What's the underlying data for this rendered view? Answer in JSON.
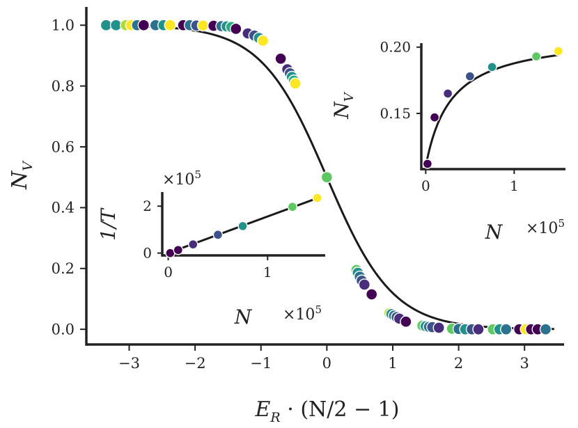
{
  "colors": {
    "axis": "#222222",
    "curve": "#1a1a1a",
    "marker_edge": "#ffffff",
    "palette": [
      "#440154",
      "#472d7b",
      "#3b528b",
      "#2c728e",
      "#21918c",
      "#28ae80",
      "#5ec962",
      "#addc30",
      "#fde725"
    ]
  },
  "chart_data": [
    {
      "id": "main",
      "type": "scatter",
      "xlabel": "E_R · (N/2 − 1)",
      "xlabel_main": "E",
      "xlabel_sub": "R",
      "xlabel_rest": " · (N/2 − 1)",
      "ylabel": "N_V",
      "ylabel_main": "N",
      "ylabel_sub": "V",
      "xlim": [
        -3.65,
        3.6
      ],
      "ylim": [
        -0.05,
        1.06
      ],
      "xticks": [
        -3,
        -2,
        -1,
        0,
        1,
        2,
        3
      ],
      "xtick_labels": [
        "−3",
        "−2",
        "−1",
        "0",
        "1",
        "2",
        "3"
      ],
      "yticks": [
        0.0,
        0.2,
        0.4,
        0.6,
        0.8,
        1.0
      ],
      "ytick_labels": [
        "0.0",
        "0.2",
        "0.4",
        "0.6",
        "0.8",
        "1.0"
      ],
      "grid": false,
      "curve": "logistic: N_V = 1 / (1 + exp(2x))",
      "points": [
        {
          "x": -3.35,
          "y": 1.0,
          "c": 4
        },
        {
          "x": -3.2,
          "y": 1.0,
          "c": 4
        },
        {
          "x": -3.05,
          "y": 1.0,
          "c": 7
        },
        {
          "x": -2.97,
          "y": 1.0,
          "c": 8
        },
        {
          "x": -2.88,
          "y": 1.0,
          "c": 3
        },
        {
          "x": -2.78,
          "y": 1.0,
          "c": 0
        },
        {
          "x": -2.6,
          "y": 1.0,
          "c": 3
        },
        {
          "x": -2.48,
          "y": 1.0,
          "c": 4
        },
        {
          "x": -2.38,
          "y": 1.0,
          "c": 8
        },
        {
          "x": -2.18,
          "y": 1.0,
          "c": 0
        },
        {
          "x": -2.08,
          "y": 1.0,
          "c": 3
        },
        {
          "x": -1.98,
          "y": 0.999,
          "c": 2
        },
        {
          "x": -1.88,
          "y": 0.999,
          "c": 8
        },
        {
          "x": -1.72,
          "y": 0.998,
          "c": 0
        },
        {
          "x": -1.6,
          "y": 0.997,
          "c": 3
        },
        {
          "x": -1.52,
          "y": 0.996,
          "c": 4
        },
        {
          "x": -1.45,
          "y": 0.994,
          "c": 5
        },
        {
          "x": -1.38,
          "y": 0.988,
          "c": 0
        },
        {
          "x": -1.2,
          "y": 0.973,
          "c": 1
        },
        {
          "x": -1.1,
          "y": 0.966,
          "c": 2
        },
        {
          "x": -1.03,
          "y": 0.958,
          "c": 4
        },
        {
          "x": -0.97,
          "y": 0.949,
          "c": 8
        },
        {
          "x": -0.7,
          "y": 0.89,
          "c": 0
        },
        {
          "x": -0.6,
          "y": 0.855,
          "c": 1
        },
        {
          "x": -0.56,
          "y": 0.842,
          "c": 2
        },
        {
          "x": -0.53,
          "y": 0.83,
          "c": 4
        },
        {
          "x": -0.5,
          "y": 0.818,
          "c": 5
        },
        {
          "x": -0.48,
          "y": 0.808,
          "c": 8
        },
        {
          "x": 0.0,
          "y": 0.5,
          "c": 6
        },
        {
          "x": 0.45,
          "y": 0.195,
          "c": 6
        },
        {
          "x": 0.47,
          "y": 0.186,
          "c": 4
        },
        {
          "x": 0.5,
          "y": 0.173,
          "c": 3
        },
        {
          "x": 0.53,
          "y": 0.16,
          "c": 2
        },
        {
          "x": 0.57,
          "y": 0.147,
          "c": 1
        },
        {
          "x": 0.68,
          "y": 0.115,
          "c": 0
        },
        {
          "x": 0.95,
          "y": 0.053,
          "c": 7
        },
        {
          "x": 0.98,
          "y": 0.05,
          "c": 4
        },
        {
          "x": 1.02,
          "y": 0.045,
          "c": 3
        },
        {
          "x": 1.06,
          "y": 0.04,
          "c": 2
        },
        {
          "x": 1.1,
          "y": 0.035,
          "c": 1
        },
        {
          "x": 1.2,
          "y": 0.025,
          "c": 0
        },
        {
          "x": 1.45,
          "y": 0.012,
          "c": 6
        },
        {
          "x": 1.5,
          "y": 0.01,
          "c": 4
        },
        {
          "x": 1.55,
          "y": 0.008,
          "c": 3
        },
        {
          "x": 1.6,
          "y": 0.007,
          "c": 2
        },
        {
          "x": 1.7,
          "y": 0.005,
          "c": 1
        },
        {
          "x": 1.9,
          "y": 0.002,
          "c": 6
        },
        {
          "x": 2.0,
          "y": 0.001,
          "c": 3
        },
        {
          "x": 2.1,
          "y": 0.0,
          "c": 4
        },
        {
          "x": 2.2,
          "y": 0.0,
          "c": 2
        },
        {
          "x": 2.3,
          "y": 0.0,
          "c": 1
        },
        {
          "x": 2.52,
          "y": 0.0,
          "c": 6
        },
        {
          "x": 2.62,
          "y": 0.0,
          "c": 4
        },
        {
          "x": 2.72,
          "y": 0.0,
          "c": 3
        },
        {
          "x": 2.92,
          "y": 0.0,
          "c": 0
        },
        {
          "x": 3.02,
          "y": 0.0,
          "c": 8
        },
        {
          "x": 3.1,
          "y": 0.0,
          "c": 0
        },
        {
          "x": 3.2,
          "y": 0.0,
          "c": 0
        },
        {
          "x": 3.32,
          "y": 0.0,
          "c": 3
        }
      ]
    },
    {
      "id": "inset-left",
      "type": "scatter",
      "xlabel": "N",
      "ylabel": "1/T",
      "xlim": [
        -0.06,
        1.58
      ],
      "ylim": [
        -0.1,
        2.6
      ],
      "xticks": [
        0,
        1
      ],
      "xtick_labels": [
        "0",
        "1"
      ],
      "yticks": [
        0,
        2
      ],
      "ytick_labels": [
        "0",
        "2"
      ],
      "x_multiplier": "×10⁵",
      "x_multiplier_base": "×10",
      "x_multiplier_exp": "5",
      "y_multiplier": "×10⁵",
      "y_multiplier_base": "×10",
      "y_multiplier_exp": "5",
      "line": "linear",
      "points": [
        {
          "x": 0.02,
          "y": 0.0,
          "c": 0
        },
        {
          "x": 0.1,
          "y": 0.13,
          "c": 0
        },
        {
          "x": 0.25,
          "y": 0.37,
          "c": 1
        },
        {
          "x": 0.5,
          "y": 0.78,
          "c": 2
        },
        {
          "x": 0.75,
          "y": 1.15,
          "c": 4
        },
        {
          "x": 1.25,
          "y": 1.97,
          "c": 6
        },
        {
          "x": 1.5,
          "y": 2.35,
          "c": 8
        }
      ]
    },
    {
      "id": "inset-right",
      "type": "scatter",
      "xlabel": "N",
      "ylabel": "N_V",
      "ylabel_main": "N",
      "ylabel_sub": "V",
      "xlim": [
        -0.05,
        1.58
      ],
      "ylim": [
        0.108,
        0.203
      ],
      "xticks": [
        0,
        1
      ],
      "xtick_labels": [
        "0",
        "1"
      ],
      "yticks": [
        0.15,
        0.2
      ],
      "ytick_labels": [
        "0.15",
        "0.20"
      ],
      "x_multiplier": "×10⁵",
      "x_multiplier_base": "×10",
      "x_multiplier_exp": "5",
      "line": "saturating",
      "points": [
        {
          "x": 0.02,
          "y": 0.112,
          "c": 0
        },
        {
          "x": 0.1,
          "y": 0.147,
          "c": 0
        },
        {
          "x": 0.25,
          "y": 0.165,
          "c": 1
        },
        {
          "x": 0.5,
          "y": 0.178,
          "c": 2
        },
        {
          "x": 0.75,
          "y": 0.185,
          "c": 4
        },
        {
          "x": 1.25,
          "y": 0.193,
          "c": 6
        },
        {
          "x": 1.5,
          "y": 0.197,
          "c": 8
        }
      ]
    }
  ]
}
